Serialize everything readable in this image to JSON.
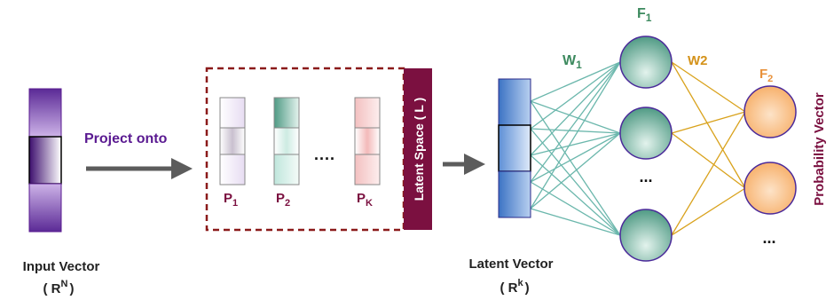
{
  "input": {
    "label": "Input Vector",
    "space_base": "( R",
    "space_exp": "N",
    "space_close": ")"
  },
  "project": {
    "label": "Project onto"
  },
  "prototypes": {
    "p1": {
      "base": "P",
      "sub": "1"
    },
    "p2": {
      "base": "P",
      "sub": "2"
    },
    "pk": {
      "base": "P",
      "sub": "K"
    },
    "ellipsis": "...."
  },
  "latent_space": {
    "label": "Latent Space ( L )"
  },
  "latent": {
    "label": "Latent Vector",
    "space_base": "( R",
    "space_exp": "k",
    "space_close": ")"
  },
  "network": {
    "w1": {
      "base": "W",
      "sub": "1"
    },
    "w2": {
      "base": "W",
      "sub": "2"
    },
    "f1": {
      "base": "F",
      "sub": "1"
    },
    "f2": {
      "base": "F",
      "sub": "2"
    },
    "hidden_ellipsis": "...",
    "output_ellipsis": "...",
    "output_label": "Probability Vector"
  },
  "colors": {
    "purple": "#5a1a91",
    "maroon": "#7b1040",
    "dashed_border": "#8b1a1a",
    "teal_line": "#5fb3a8",
    "gold_line": "#d4a017",
    "hidden_green": "#2e8b6a",
    "output_orange": "#e8913a",
    "w1_color": "#3d8a5f",
    "w2_color": "#d4921a"
  }
}
